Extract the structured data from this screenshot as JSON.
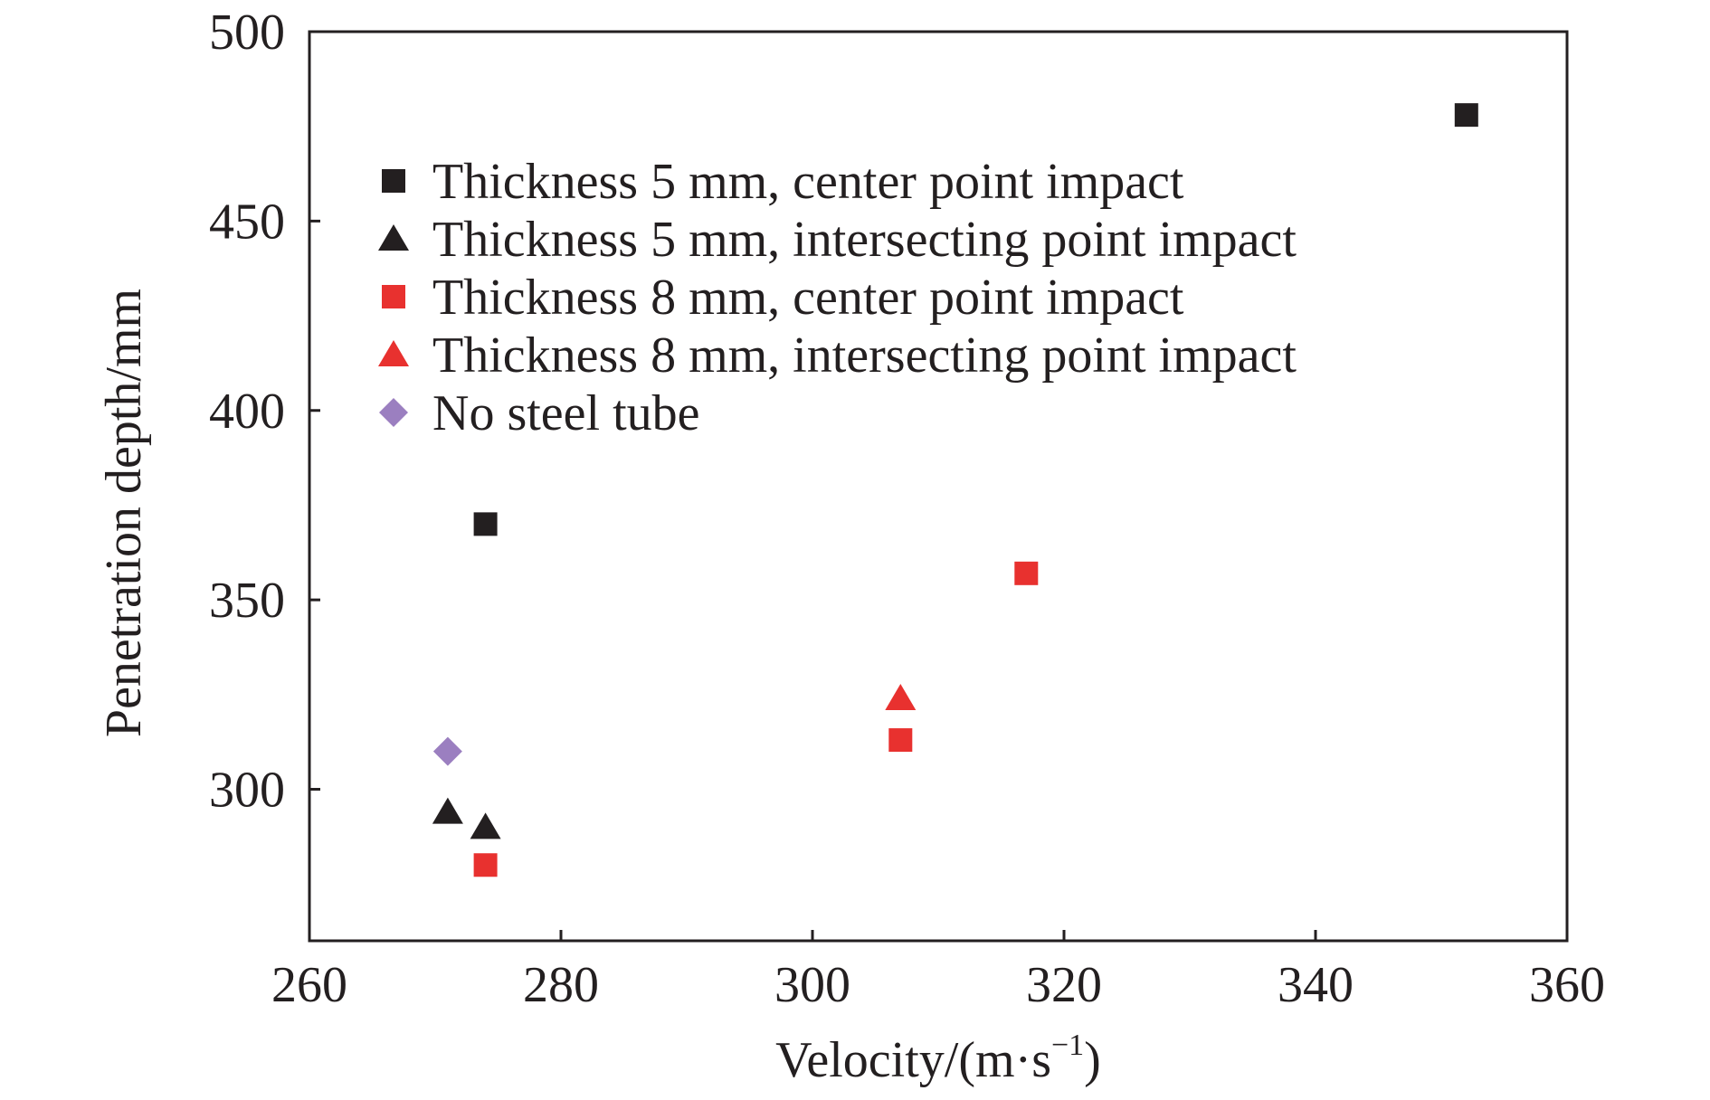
{
  "chart_data": {
    "type": "scatter",
    "xlabel": "Velocity/(m·s",
    "xlabel_sup": "−1",
    "xlabel_close": ")",
    "ylabel": "Penetration depth/mm",
    "xlim": [
      260,
      360
    ],
    "ylim": [
      260,
      500
    ],
    "x_ticks": [
      260,
      280,
      300,
      320,
      340,
      360
    ],
    "y_ticks": [
      300,
      350,
      400,
      450,
      500
    ],
    "x_tick_labels": [
      "260",
      "280",
      "300",
      "320",
      "340",
      "360"
    ],
    "y_tick_labels": [
      "300",
      "350",
      "400",
      "450",
      "500"
    ],
    "grid": false,
    "legend_position": "top-left",
    "series": [
      {
        "name": "Thickness 5 mm, center point impact",
        "marker": "square",
        "color": "#231f20",
        "points": [
          [
            274,
            370
          ],
          [
            352,
            478
          ]
        ]
      },
      {
        "name": "Thickness 5 mm, intersecting point impact",
        "marker": "triangle",
        "color": "#231f20",
        "points": [
          [
            271,
            294
          ],
          [
            274,
            290
          ]
        ]
      },
      {
        "name": "Thickness 8 mm, center point impact",
        "marker": "square",
        "color": "#e8312f",
        "points": [
          [
            274,
            280
          ],
          [
            307,
            313
          ],
          [
            317,
            357
          ]
        ]
      },
      {
        "name": "Thickness 8 mm, intersecting point impact",
        "marker": "triangle",
        "color": "#e8312f",
        "points": [
          [
            307,
            324
          ]
        ]
      },
      {
        "name": "No steel tube",
        "marker": "diamond",
        "color": "#9b7fc0",
        "points": [
          [
            271,
            310
          ]
        ]
      }
    ]
  }
}
